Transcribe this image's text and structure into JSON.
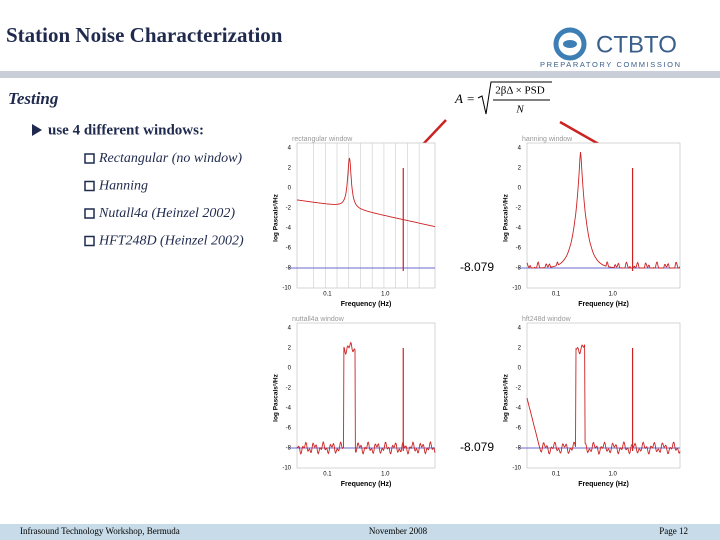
{
  "header": {
    "title": "Station Noise Characterization",
    "logo": "CTBTO",
    "logo_sub": "PREPARATORY COMMISSION"
  },
  "section": "Testing",
  "formula": {
    "lhs": "A",
    "eq": "=",
    "numerator": "2βΔ × PSD",
    "denominator": "N"
  },
  "bullet": "use 4 different windows:",
  "windows": [
    "Rectangular (no window)",
    "Hanning",
    "Nutall4a (Heinzel 2002)",
    "HFT248D (Heinzel 2002)"
  ],
  "plots": [
    {
      "title": "rectangular window"
    },
    {
      "title": "hanning window"
    },
    {
      "title": "nuttall4a window"
    },
    {
      "title": "hft248d window"
    }
  ],
  "axis": {
    "yticks": [
      "4",
      "2",
      "0",
      "-2",
      "-4",
      "-6",
      "-8",
      "-10"
    ],
    "xticks": [
      "0.1",
      "1.0"
    ],
    "xlabel": "Frequency (Hz)",
    "ylabel": "log Pascals²/Hz"
  },
  "annotation": "-8.079",
  "footer": {
    "left": "Infrasound Technology Workshop, Bermuda",
    "center": "November 2008",
    "right": "Page 12"
  }
}
